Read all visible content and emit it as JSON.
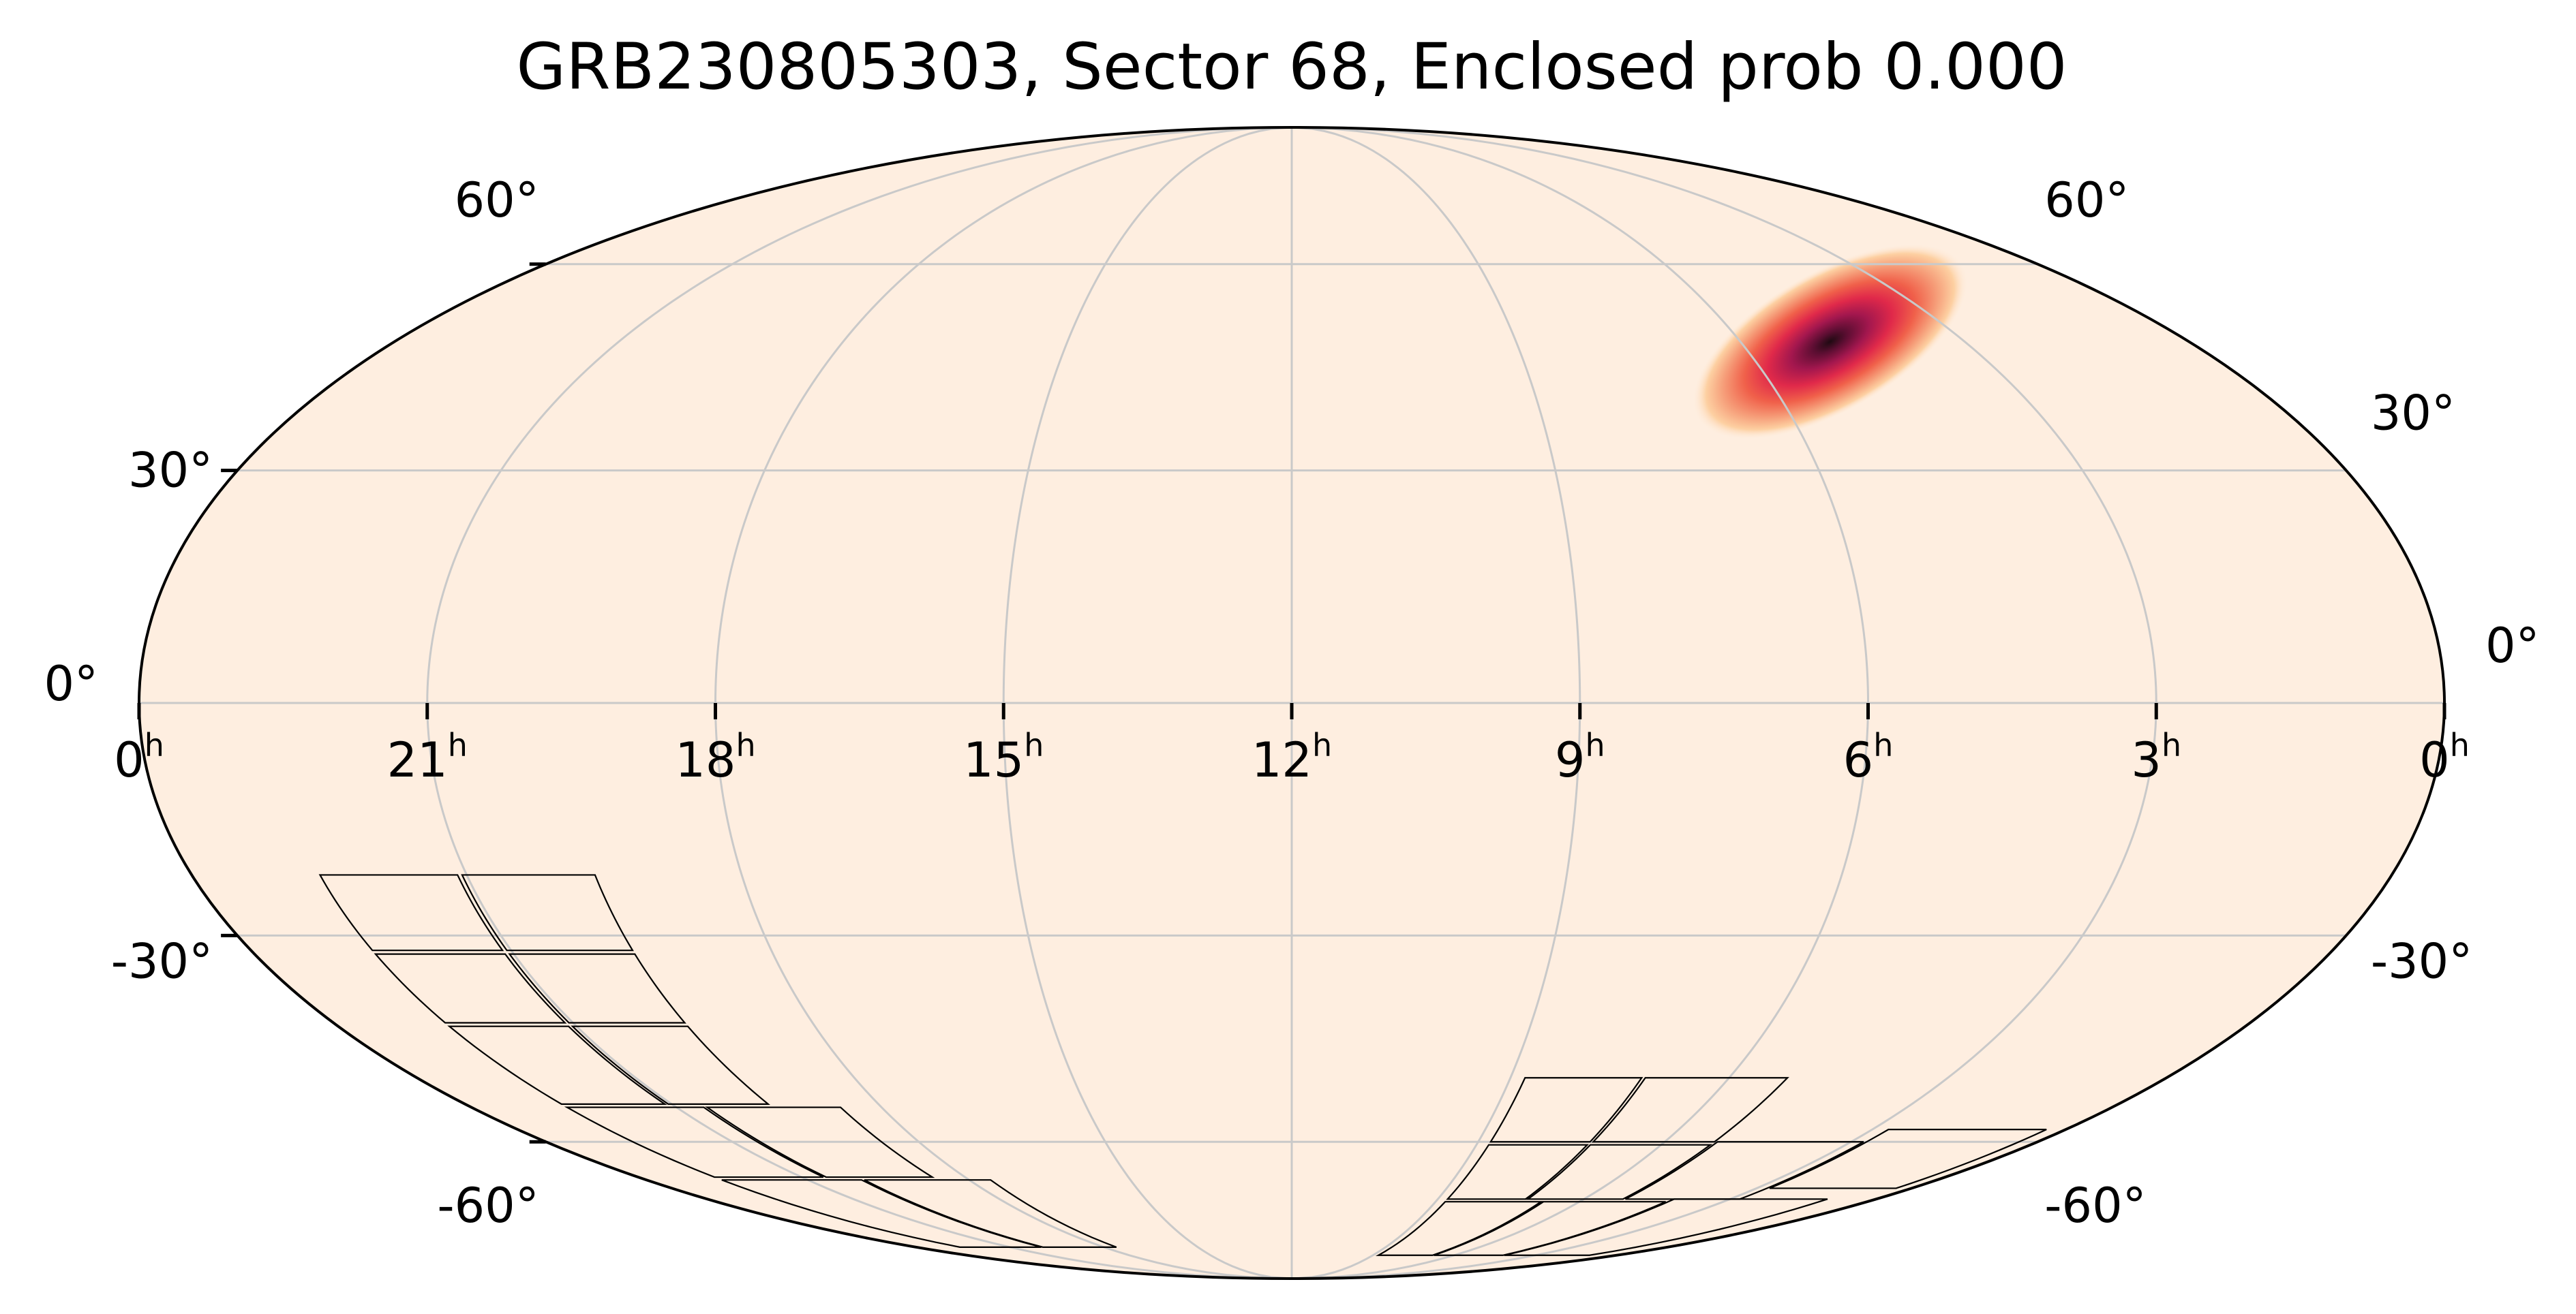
{
  "chart_data": {
    "type": "heatmap",
    "projection": "mollweide",
    "title": "GRB230805303, Sector 68, Enclosed prob 0.000",
    "ra_ticks": [
      {
        "label": "0",
        "unit": "h",
        "ra_hours": 24
      },
      {
        "label": "21",
        "unit": "h",
        "ra_hours": 21
      },
      {
        "label": "18",
        "unit": "h",
        "ra_hours": 18
      },
      {
        "label": "15",
        "unit": "h",
        "ra_hours": 15
      },
      {
        "label": "12",
        "unit": "h",
        "ra_hours": 12
      },
      {
        "label": "9",
        "unit": "h",
        "ra_hours": 9
      },
      {
        "label": "6",
        "unit": "h",
        "ra_hours": 6
      },
      {
        "label": "3",
        "unit": "h",
        "ra_hours": 3
      },
      {
        "label": "0",
        "unit": "h",
        "ra_hours": 0
      }
    ],
    "dec_ticks": [
      {
        "label": "60°",
        "dec_deg": 60
      },
      {
        "label": "30°",
        "dec_deg": 30
      },
      {
        "label": "0°",
        "dec_deg": 0
      },
      {
        "label": "-30°",
        "dec_deg": -30
      },
      {
        "label": "-60°",
        "dec_deg": -60
      }
    ],
    "ra_range_hours": [
      24,
      0
    ],
    "dec_range_deg": [
      -90,
      90
    ],
    "grid": true,
    "background_color": "#feeee0",
    "colormap": [
      "#feeee0",
      "#fdd0a2",
      "#f6a07b",
      "#f0604a",
      "#e0294a",
      "#a3174e",
      "#5c0e32",
      "#1f0a12"
    ],
    "probability_peak": {
      "ra_hours": 4.8,
      "dec_deg": 48,
      "sigma_along_deg": 11,
      "sigma_across_deg": 5,
      "tilt_deg": -30
    },
    "tess_ccd_footprints": [
      {
        "name": "south-east group",
        "ra_hours_range": [
          17.6,
          22.6
        ],
        "dec_deg_range": [
          -86,
          -22
        ]
      },
      {
        "name": "south-west group",
        "ra_hours_range": [
          0.3,
          8.8
        ],
        "dec_deg_range": [
          -88,
          -50
        ]
      }
    ]
  }
}
